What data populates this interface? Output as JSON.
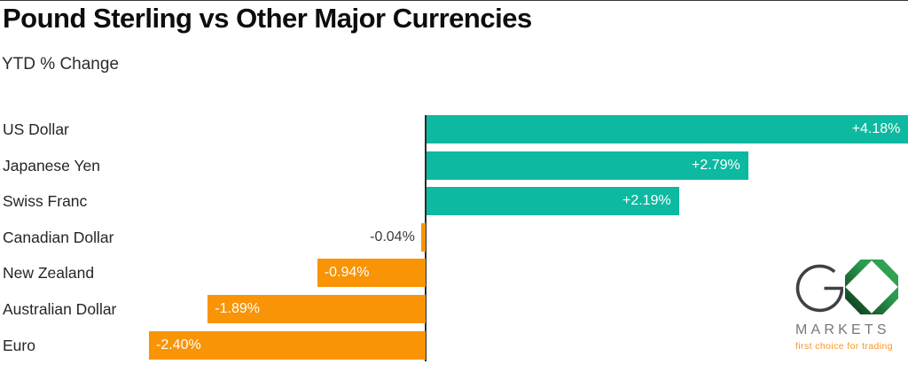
{
  "page": {
    "title": "Pound Sterling vs Other Major Currencies",
    "subtitle": "YTD % Change"
  },
  "chart_data": {
    "type": "bar",
    "orientation": "horizontal",
    "title": "Pound Sterling vs Other Major Currencies",
    "xlabel": "YTD % Change",
    "categories": [
      "US Dollar",
      "Japanese Yen",
      "Swiss Franc",
      "Canadian Dollar",
      "New Zealand",
      "Australian Dollar",
      "Euro"
    ],
    "values": [
      4.18,
      2.79,
      2.19,
      -0.04,
      -0.94,
      -1.89,
      -2.4
    ],
    "value_labels": [
      "+4.18%",
      "+2.79%",
      "+2.19%",
      "-0.04%",
      "-0.94%",
      "-1.89%",
      "-2.40%"
    ],
    "xlim": [
      -2.45,
      4.18
    ],
    "grid": false,
    "legend": false,
    "positive_color": "#0db9a0",
    "negative_color": "#f89406",
    "axis_color": "#2b2b2b"
  },
  "logo": {
    "brand_letter": "G",
    "brand_word": "MARKETS",
    "tagline": "first choice for trading",
    "octagon_green": "#2c9c4e",
    "octagon_dark": "#0b2a16",
    "word_color": "#77787b",
    "tagline_color": "#f7941e"
  }
}
